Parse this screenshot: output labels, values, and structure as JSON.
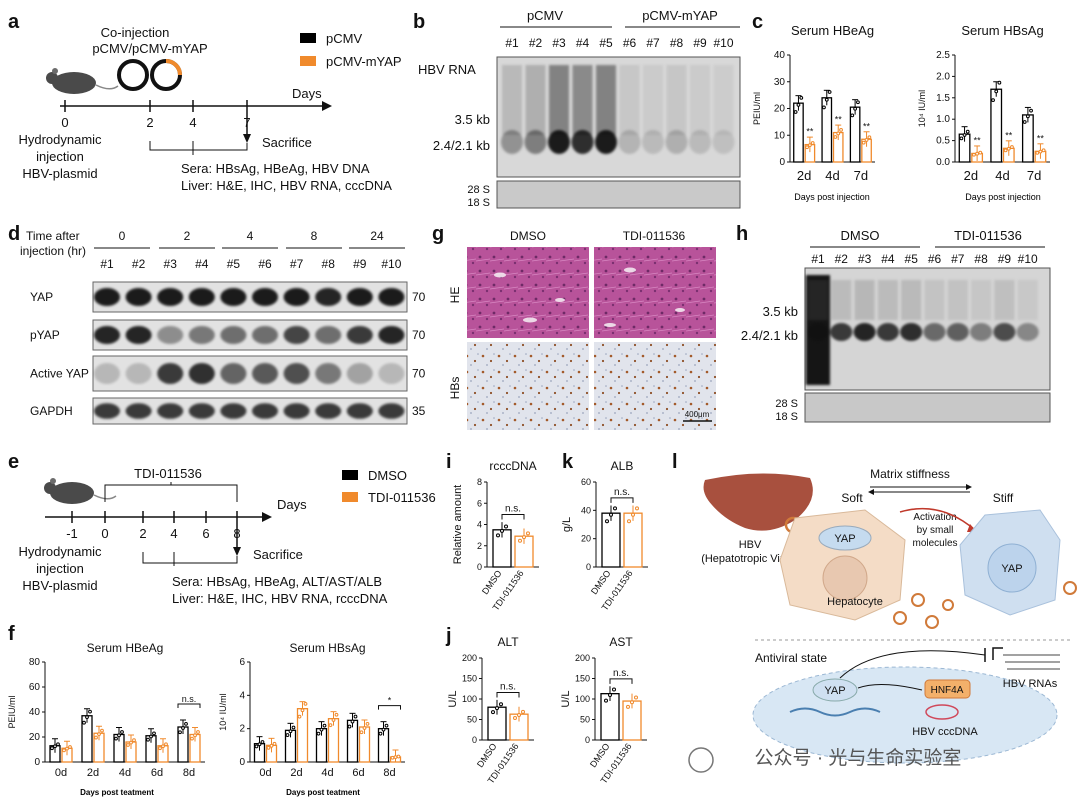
{
  "colors": {
    "ctrl": "#000000",
    "treat": "#f08a2c",
    "he": "#b24c8e",
    "ihc_bg": "#dfe3ea",
    "liver": "#a8503e",
    "cell": "#f4dcc6",
    "cell_stiff": "#cfdff0",
    "nucleus": "#c5dbef"
  },
  "panel_letters": [
    "a",
    "b",
    "c",
    "d",
    "e",
    "f",
    "g",
    "h",
    "i",
    "j",
    "k",
    "l"
  ],
  "a": {
    "co_injection": "Co-injection",
    "plasmids": "pCMV/pCMV-mYAP",
    "legend": [
      "pCMV",
      "pCMV-mYAP"
    ],
    "days_label": "Days",
    "ticks": [
      "0",
      "2",
      "4",
      "7"
    ],
    "sacrifice": "Sacrifice",
    "hydro": [
      "Hydrodynamic",
      "injection",
      "HBV-plasmid"
    ],
    "sera": "Sera: HBsAg, HBeAg, HBV DNA",
    "liver": "Liver:  H&E, IHC, HBV RNA, cccDNA"
  },
  "b": {
    "groups": [
      "pCMV",
      "pCMV-mYAP"
    ],
    "lanes": [
      "#1",
      "#2",
      "#3",
      "#4",
      "#5",
      "#6",
      "#7",
      "#8",
      "#9",
      "#10"
    ],
    "row_label": "HBV RNA",
    "bands": [
      "3.5 kb",
      "2.4/2.1 kb"
    ],
    "rrna": [
      "28 S",
      "18 S"
    ]
  },
  "c": {
    "days": [
      "2d",
      "4d",
      "7d"
    ],
    "xlabel": "Days post injection",
    "star": "**"
  },
  "d": {
    "time_label": [
      "Time after",
      "injection (hr)"
    ],
    "times": [
      "0",
      "2",
      "4",
      "8",
      "24"
    ],
    "lanes": [
      "#1",
      "#2",
      "#3",
      "#4",
      "#5",
      "#6",
      "#7",
      "#8",
      "#9",
      "#10"
    ],
    "rows": [
      "YAP",
      "pYAP",
      "Active YAP",
      "GAPDH"
    ],
    "mw": [
      "70",
      "70",
      "70",
      "35"
    ]
  },
  "e": {
    "drug": "TDI-011536",
    "days_label": "Days",
    "ticks": [
      "-1",
      "0",
      "2",
      "4",
      "6",
      "8"
    ],
    "legend": [
      "DMSO",
      "TDI-011536"
    ],
    "sacrifice": "Sacrifice",
    "hydro": [
      "Hydrodynamic",
      "injection",
      "HBV-plasmid"
    ],
    "sera": "Sera: HBsAg, HBeAg, ALT/AST/ALB",
    "liver": "Liver:  H&E, IHC, HBV RNA, rcccDNA"
  },
  "f": {
    "days": [
      "0d",
      "2d",
      "4d",
      "6d",
      "8d"
    ],
    "xlabel": "Days post teatment",
    "ns": "n.s.",
    "star": "*"
  },
  "g": {
    "cols": [
      "DMSO",
      "TDI-011536"
    ],
    "rows": [
      "HE",
      "HBs"
    ],
    "scale": "400μm"
  },
  "h": {
    "groups": [
      "DMSO",
      "TDI-011536"
    ],
    "lanes": [
      "#1",
      "#2",
      "#3",
      "#4",
      "#5",
      "#6",
      "#7",
      "#8",
      "#9",
      "#10"
    ],
    "bands": [
      "3.5 kb",
      "2.4/2.1 kb"
    ],
    "rrna": [
      "28 S",
      "18 S"
    ]
  },
  "i": {
    "categories": [
      "DMSO",
      "TDI-011536"
    ],
    "ns": "n.s."
  },
  "k": {
    "categories": [
      "DMSO",
      "TDI-011536"
    ],
    "ns": "n.s."
  },
  "j": {
    "categories": [
      "DMSO",
      "TDI-011536"
    ],
    "ns": "n.s."
  },
  "l": {
    "title": "Matrix stiffness",
    "soft": "Soft",
    "stiff": "Stiff",
    "hbv": "HBV",
    "hbv_full": "(Hepatotropic Virus)",
    "yap": "YAP",
    "hepatocyte": "Hepatocyte",
    "activation": [
      "Activation",
      "by small",
      "molecules"
    ],
    "antiviral": "Antiviral state",
    "hnf4a": "HNF4A",
    "cccdna": "HBV cccDNA",
    "rnas": "HBV RNAs"
  },
  "watermark": "公众号 · 光与生命实验室",
  "chart_data": [
    {
      "id": "c-hbeag",
      "type": "bar",
      "title": "Serum HBeAg",
      "ylabel": "PEIU/ml",
      "xlabel": "Days post injection",
      "ylim": [
        0,
        40
      ],
      "yticks": [
        0,
        10,
        20,
        30,
        40
      ],
      "categories": [
        "2d",
        "4d",
        "7d"
      ],
      "series": [
        {
          "name": "pCMV",
          "values": [
            22,
            24,
            20.5
          ]
        },
        {
          "name": "pCMV-mYAP",
          "values": [
            6.5,
            11,
            8.5
          ]
        }
      ],
      "annotations": [
        "**",
        "**",
        "**"
      ]
    },
    {
      "id": "c-hbsag",
      "type": "bar",
      "title": "Serum HBsAg",
      "ylabel": "10⁴ IU/ml",
      "xlabel": "Days post injection",
      "ylim": [
        0,
        2.5
      ],
      "yticks": [
        0.0,
        0.5,
        1.0,
        1.5,
        2.0,
        2.5
      ],
      "categories": [
        "2d",
        "4d",
        "7d"
      ],
      "series": [
        {
          "name": "pCMV",
          "values": [
            0.65,
            1.7,
            1.1
          ]
        },
        {
          "name": "pCMV-mYAP",
          "values": [
            0.2,
            0.32,
            0.25
          ]
        }
      ],
      "annotations": [
        "**",
        "**",
        "**"
      ]
    },
    {
      "id": "f-hbeag",
      "type": "bar",
      "title": "Serum HBeAg",
      "ylabel": "PEIU/ml",
      "xlabel": "Days post teatment",
      "ylim": [
        0,
        80
      ],
      "yticks": [
        0,
        20,
        40,
        60,
        80
      ],
      "categories": [
        "0d",
        "2d",
        "4d",
        "6d",
        "8d"
      ],
      "series": [
        {
          "name": "DMSO",
          "values": [
            13,
            37,
            22,
            21,
            28
          ]
        },
        {
          "name": "TDI-011536",
          "values": [
            11,
            23,
            16,
            13,
            22
          ]
        }
      ],
      "annotations": [
        "",
        "",
        "",
        "",
        "n.s."
      ]
    },
    {
      "id": "f-hbsag",
      "type": "bar",
      "title": "Serum HBsAg",
      "ylabel": "10⁴ IU/ml",
      "xlabel": "Days post teatment",
      "ylim": [
        0,
        6
      ],
      "yticks": [
        0,
        2,
        4,
        6
      ],
      "categories": [
        "0d",
        "2d",
        "4d",
        "6d",
        "8d"
      ],
      "series": [
        {
          "name": "DMSO",
          "values": [
            1.1,
            1.9,
            2.0,
            2.5,
            2.0
          ]
        },
        {
          "name": "TDI-011536",
          "values": [
            1.0,
            3.2,
            2.6,
            2.1,
            0.3
          ]
        }
      ],
      "annotations": [
        "",
        "",
        "",
        "",
        "*"
      ]
    },
    {
      "id": "i-rcccdna",
      "type": "bar",
      "title": "rcccDNA",
      "ylabel": "Relative amount",
      "ylim": [
        0,
        8
      ],
      "yticks": [
        0,
        2,
        4,
        6,
        8
      ],
      "categories": [
        "DMSO",
        "TDI-011536"
      ],
      "values": [
        3.5,
        2.9
      ],
      "annotation": "n.s."
    },
    {
      "id": "k-alb",
      "type": "bar",
      "title": "ALB",
      "ylabel": "g/L",
      "ylim": [
        0,
        60
      ],
      "yticks": [
        0,
        20,
        40,
        60
      ],
      "categories": [
        "DMSO",
        "TDI-011536"
      ],
      "values": [
        38,
        38
      ],
      "annotation": "n.s."
    },
    {
      "id": "j-alt",
      "type": "bar",
      "title": "ALT",
      "ylabel": "U/L",
      "ylim": [
        0,
        200
      ],
      "yticks": [
        0,
        50,
        100,
        150,
        200
      ],
      "categories": [
        "DMSO",
        "TDI-011536"
      ],
      "values": [
        80,
        63
      ],
      "annotation": "n.s."
    },
    {
      "id": "j-ast",
      "type": "bar",
      "title": "AST",
      "ylabel": "U/L",
      "ylim": [
        0,
        200
      ],
      "yticks": [
        0,
        50,
        100,
        150,
        200
      ],
      "categories": [
        "DMSO",
        "TDI-011536"
      ],
      "values": [
        113,
        95
      ],
      "annotation": "n.s."
    }
  ]
}
